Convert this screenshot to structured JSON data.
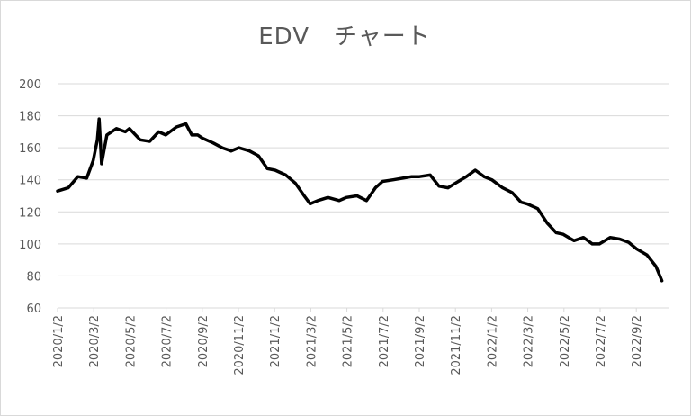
{
  "chart_data": {
    "type": "line",
    "title": "EDV　チャート",
    "xlabel": "",
    "ylabel": "",
    "ylim": [
      60,
      200
    ],
    "yticks": [
      60,
      80,
      100,
      120,
      140,
      160,
      180,
      200
    ],
    "xticks": [
      "2020/1/2",
      "2020/3/2",
      "2020/5/2",
      "2020/7/2",
      "2020/9/2",
      "2020/11/2",
      "2021/1/2",
      "2021/3/2",
      "2021/5/2",
      "2021/7/2",
      "2021/9/2",
      "2021/11/2",
      "2022/1/2",
      "2022/3/2",
      "2022/5/2",
      "2022/7/2",
      "2022/9/2"
    ],
    "grid": true,
    "line_color": "#000000",
    "series": [
      {
        "x": [
          "2020/1/2",
          "2020/1/20",
          "2020/2/5",
          "2020/2/20",
          "2020/3/2",
          "2020/3/9",
          "2020/3/12",
          "2020/3/16",
          "2020/3/20",
          "2020/3/25",
          "2020/4/10",
          "2020/4/25",
          "2020/5/2",
          "2020/5/20",
          "2020/6/5",
          "2020/6/20",
          "2020/7/2",
          "2020/7/20",
          "2020/8/5",
          "2020/8/15",
          "2020/8/25",
          "2020/9/2",
          "2020/9/20",
          "2020/10/5",
          "2020/10/20",
          "2020/11/2",
          "2020/11/20",
          "2020/12/5",
          "2020/12/20",
          "2021/1/2",
          "2021/1/20",
          "2021/2/5",
          "2021/2/20",
          "2021/3/2",
          "2021/3/15",
          "2021/4/1",
          "2021/4/20",
          "2021/5/2",
          "2021/5/20",
          "2021/6/5",
          "2021/6/20",
          "2021/7/2",
          "2021/7/20",
          "2021/8/5",
          "2021/8/20",
          "2021/9/2",
          "2021/9/20",
          "2021/10/5",
          "2021/10/20",
          "2021/11/2",
          "2021/11/20",
          "2021/12/5",
          "2021/12/20",
          "2022/1/2",
          "2022/1/20",
          "2022/2/5",
          "2022/2/20",
          "2022/3/2",
          "2022/3/20",
          "2022/4/5",
          "2022/4/20",
          "2022/5/2",
          "2022/5/20",
          "2022/6/5",
          "2022/6/20",
          "2022/7/2",
          "2022/7/20",
          "2022/8/5",
          "2022/8/20",
          "2022/9/2",
          "2022/9/20",
          "2022/10/5",
          "2022/10/15"
        ],
        "values": [
          133,
          135,
          142,
          141,
          152,
          165,
          178,
          150,
          158,
          168,
          172,
          170,
          172,
          165,
          164,
          170,
          168,
          173,
          175,
          168,
          168,
          166,
          163,
          160,
          158,
          160,
          158,
          155,
          147,
          146,
          143,
          138,
          130,
          125,
          127,
          129,
          127,
          129,
          130,
          127,
          135,
          139,
          140,
          141,
          142,
          142,
          143,
          136,
          135,
          138,
          142,
          146,
          142,
          140,
          135,
          132,
          126,
          125,
          122,
          113,
          107,
          106,
          102,
          104,
          100,
          100,
          104,
          103,
          101,
          97,
          93,
          86,
          77
        ]
      }
    ]
  }
}
